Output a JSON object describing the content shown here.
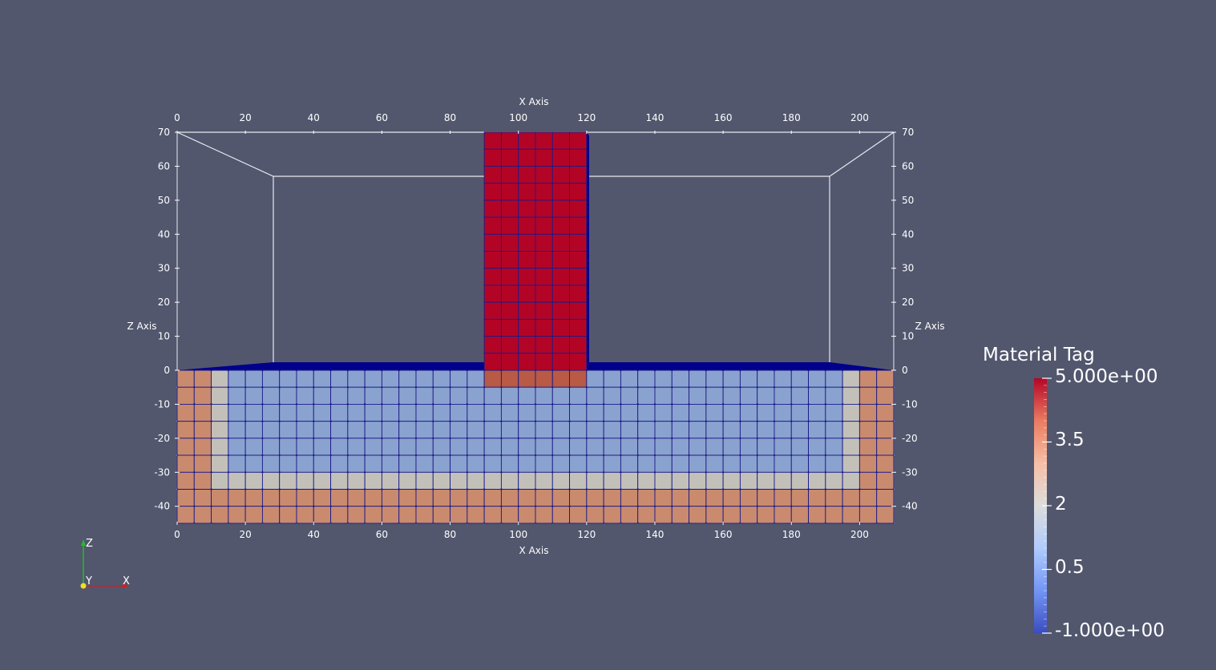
{
  "viewer": {
    "background": "#52576e"
  },
  "axes": {
    "x_title": "X Axis",
    "z_title": "Z Axis",
    "x_ticks": [
      "0",
      "20",
      "40",
      "60",
      "80",
      "100",
      "120",
      "140",
      "160",
      "180",
      "200"
    ],
    "z_ticks": [
      "70",
      "60",
      "50",
      "40",
      "30",
      "20",
      "10",
      "0",
      "-10",
      "-20",
      "-30",
      "-40"
    ],
    "x_range": [
      0,
      210
    ],
    "z_range": [
      -45,
      70
    ]
  },
  "mesh": {
    "element_size": 5,
    "soil_extent_x": [
      0,
      210
    ],
    "soil_extent_z": [
      -45,
      0
    ],
    "structure_extent_x": [
      90,
      120
    ],
    "structure_extent_z": [
      -5,
      70
    ],
    "material_colors": {
      "red": "#b40426",
      "orange": "#c98a6e",
      "gray": "#c3c0ba",
      "blue": "#8aa2cf",
      "salmon": "#b85a45",
      "edge": "#1b1b87",
      "base": "#00008b"
    }
  },
  "orientation": {
    "x_label": "X",
    "y_label": "Y",
    "z_label": "Z",
    "x_color": "#d81e1e",
    "y_color": "#f0e020",
    "z_color": "#20c020"
  },
  "colorbar": {
    "title": "Material Tag",
    "labels": [
      "5.000e+00",
      "3.5",
      "2",
      "0.5",
      "-1.000e+00"
    ],
    "range": [
      -1,
      5
    ],
    "colors": [
      "#3b4cc0",
      "#7396f5",
      "#b0cbfc",
      "#dddcdc",
      "#f6bfa6",
      "#ea7b60",
      "#b40426"
    ]
  }
}
